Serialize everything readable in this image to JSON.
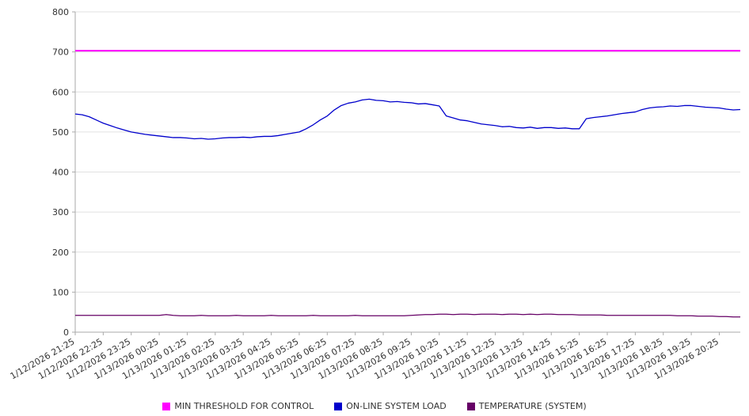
{
  "colors": {
    "grid": "#e0e0e0",
    "axis": "#aaaaaa",
    "tick_text": "#333333",
    "background": "#ffffff"
  },
  "chart_data": {
    "type": "line",
    "title": "",
    "xlabel": "",
    "ylabel": "",
    "ylim": [
      0,
      800
    ],
    "y_ticks": [
      0,
      100,
      200,
      300,
      400,
      500,
      600,
      700,
      800
    ],
    "grid": "horizontal",
    "legend_position": "bottom",
    "points_per_label": 4,
    "x_tick_labels": [
      "1/12/2026 21:25",
      "1/12/2026 22:25",
      "1/12/2026 23:25",
      "1/13/2026 00:25",
      "1/13/2026 01:25",
      "1/13/2026 02:25",
      "1/13/2026 03:25",
      "1/13/2026 04:25",
      "1/13/2026 05:25",
      "1/13/2026 06:25",
      "1/13/2026 07:25",
      "1/13/2026 08:25",
      "1/13/2026 09:25",
      "1/13/2026 10:25",
      "1/13/2026 11:25",
      "1/13/2026 12:25",
      "1/13/2026 13:25",
      "1/13/2026 14:25",
      "1/13/2026 15:25",
      "1/13/2026 16:25",
      "1/13/2026 17:25",
      "1/13/2026 18:25",
      "1/13/2026 19:25",
      "1/13/2026 20:25"
    ],
    "series": [
      {
        "name": "MIN THRESHOLD FOR CONTROL",
        "color": "#ff00ff",
        "constant": 703
      },
      {
        "name": "ON-LINE SYSTEM LOAD",
        "color": "#0000cc",
        "values": [
          545,
          543,
          538,
          530,
          522,
          516,
          510,
          505,
          500,
          497,
          494,
          492,
          490,
          488,
          486,
          486,
          485,
          483,
          484,
          482,
          483,
          485,
          486,
          486,
          487,
          486,
          488,
          489,
          489,
          491,
          494,
          497,
          500,
          508,
          518,
          530,
          540,
          555,
          566,
          572,
          575,
          580,
          582,
          579,
          578,
          575,
          576,
          574,
          573,
          570,
          571,
          568,
          565,
          540,
          535,
          530,
          528,
          524,
          520,
          518,
          516,
          513,
          514,
          511,
          510,
          512,
          509,
          511,
          511,
          509,
          510,
          508,
          508,
          533,
          536,
          538,
          540,
          543,
          546,
          548,
          550,
          556,
          560,
          562,
          563,
          565,
          564,
          566,
          566,
          564,
          562,
          561,
          560,
          557,
          555,
          556
        ]
      },
      {
        "name": "TEMPERATURE (SYSTEM)",
        "color": "#660066",
        "values": [
          42,
          42,
          42,
          42,
          42,
          42,
          42,
          42,
          42,
          42,
          42,
          42,
          42,
          44,
          42,
          41,
          41,
          41,
          42,
          41,
          41,
          41,
          41,
          42,
          41,
          41,
          41,
          41,
          42,
          41,
          41,
          41,
          41,
          41,
          42,
          41,
          41,
          41,
          41,
          41,
          42,
          41,
          41,
          41,
          41,
          41,
          41,
          41,
          42,
          43,
          44,
          44,
          45,
          45,
          44,
          45,
          45,
          44,
          45,
          45,
          45,
          44,
          45,
          45,
          44,
          45,
          44,
          45,
          45,
          44,
          44,
          44,
          43,
          43,
          43,
          43,
          42,
          42,
          42,
          42,
          42,
          42,
          42,
          42,
          42,
          42,
          41,
          41,
          41,
          40,
          40,
          40,
          39,
          39,
          38,
          38
        ]
      }
    ]
  }
}
